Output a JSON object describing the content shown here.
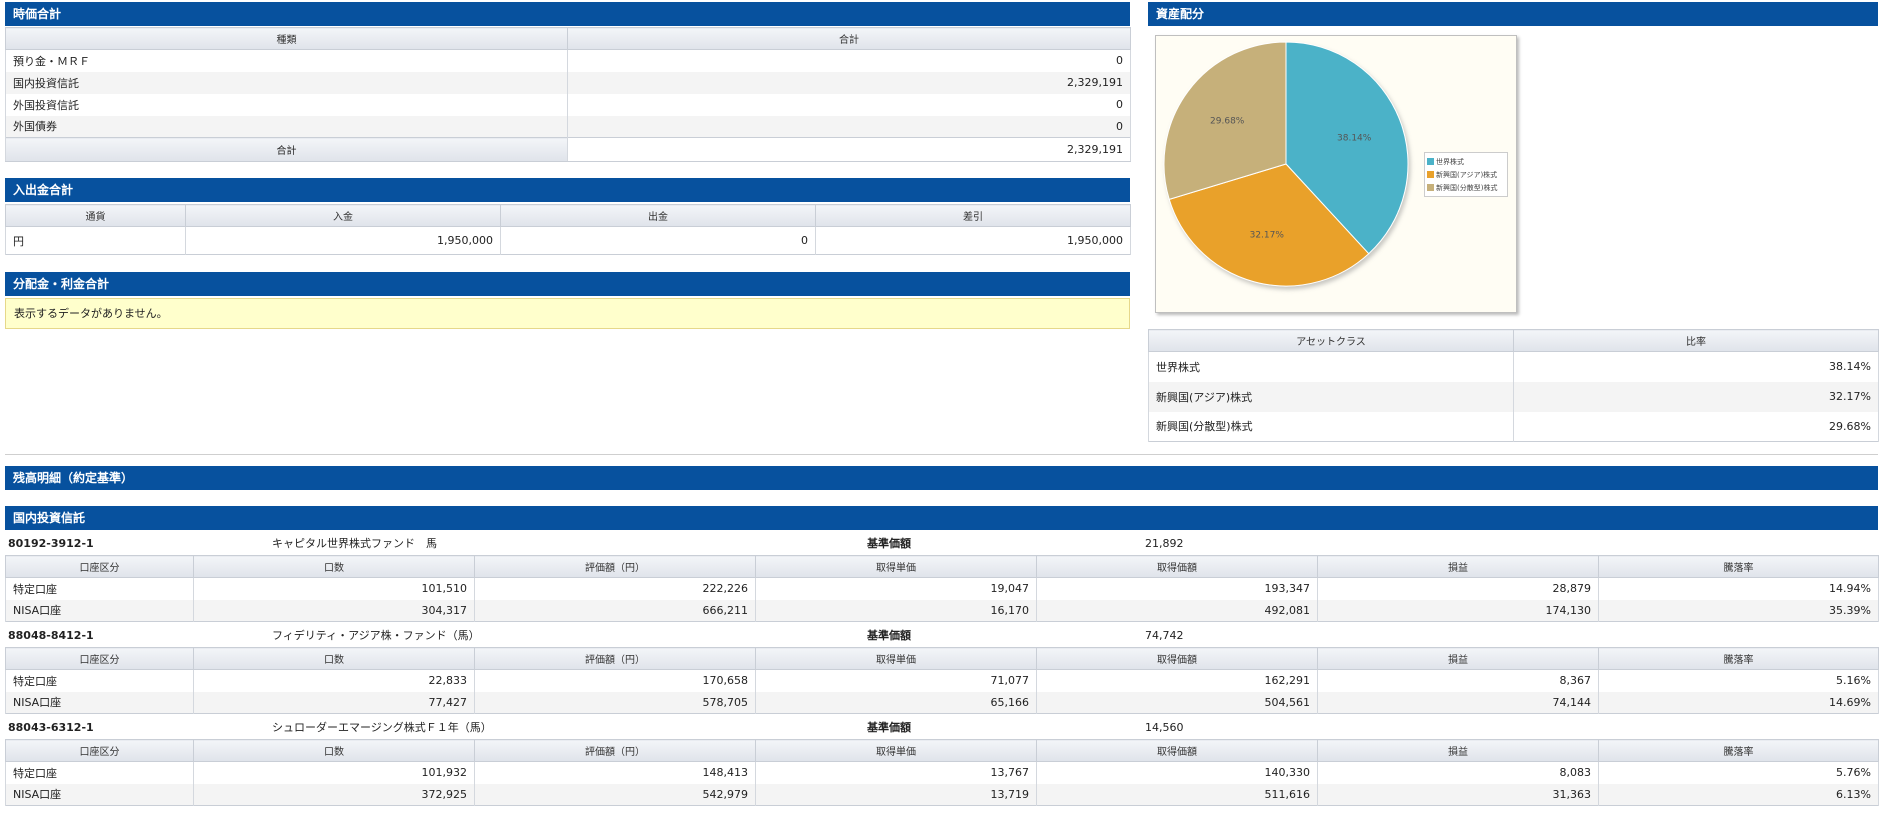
{
  "market_value": {
    "title": "時価合計",
    "headers": [
      "種類",
      "合計"
    ],
    "rows": [
      {
        "type": "預り金・ＭＲＦ",
        "total": "0"
      },
      {
        "type": "国内投資信託",
        "total": "2,329,191"
      },
      {
        "type": "外国投資信託",
        "total": "0"
      },
      {
        "type": "外国債券",
        "total": "0"
      }
    ],
    "total_label": "合計",
    "total_value": "2,329,191"
  },
  "cash_flow": {
    "title": "入出金合計",
    "headers": [
      "通貨",
      "入金",
      "出金",
      "差引"
    ],
    "row": {
      "currency": "円",
      "deposit": "1,950,000",
      "withdrawal": "0",
      "net": "1,950,000"
    }
  },
  "distribution": {
    "title": "分配金・利金合計",
    "message": "表示するデータがありません。"
  },
  "asset_allocation": {
    "title": "資産配分",
    "headers": [
      "アセットクラス",
      "比率"
    ],
    "rows": [
      {
        "cls": "世界株式",
        "ratio": "38.14%"
      },
      {
        "cls": "新興国(アジア)株式",
        "ratio": "32.17%"
      },
      {
        "cls": "新興国(分散型)株式",
        "ratio": "29.68%"
      }
    ]
  },
  "chart_data": {
    "type": "pie",
    "labels": [
      "世界株式",
      "新興国(アジア)株式",
      "新興国(分散型)株式"
    ],
    "values": [
      38.14,
      32.17,
      29.68
    ],
    "value_labels": [
      "38.14%",
      "32.17%",
      "29.68%"
    ],
    "colors": [
      "#4bb2c8",
      "#e9a12b",
      "#c6b07a"
    ],
    "legend_position": "right"
  },
  "balance": {
    "title": "残高明細（約定基準）",
    "subtitle": "国内投資信託",
    "base_price_label": "基準価額",
    "headers": [
      "口座区分",
      "口数",
      "評価額（円）",
      "取得単価",
      "取得価額",
      "損益",
      "騰落率"
    ],
    "funds": [
      {
        "code": "80192-3912-1",
        "name": "キャピタル世界株式ファンド　馬",
        "base_price": "21,892",
        "rows": [
          {
            "account": "特定口座",
            "units": "101,510",
            "value": "222,226",
            "unit_cost": "19,047",
            "cost": "193,347",
            "pl": "28,879",
            "rate": "14.94%"
          },
          {
            "account": "NISA口座",
            "units": "304,317",
            "value": "666,211",
            "unit_cost": "16,170",
            "cost": "492,081",
            "pl": "174,130",
            "rate": "35.39%"
          }
        ]
      },
      {
        "code": "88048-8412-1",
        "name": "フィデリティ・アジア株・ファンド（馬）",
        "base_price": "74,742",
        "rows": [
          {
            "account": "特定口座",
            "units": "22,833",
            "value": "170,658",
            "unit_cost": "71,077",
            "cost": "162,291",
            "pl": "8,367",
            "rate": "5.16%"
          },
          {
            "account": "NISA口座",
            "units": "77,427",
            "value": "578,705",
            "unit_cost": "65,166",
            "cost": "504,561",
            "pl": "74,144",
            "rate": "14.69%"
          }
        ]
      },
      {
        "code": "88043-6312-1",
        "name": "シュローダーエマージング株式Ｆ１年（馬）",
        "base_price": "14,560",
        "rows": [
          {
            "account": "特定口座",
            "units": "101,932",
            "value": "148,413",
            "unit_cost": "13,767",
            "cost": "140,330",
            "pl": "8,083",
            "rate": "5.76%"
          },
          {
            "account": "NISA口座",
            "units": "372,925",
            "value": "542,979",
            "unit_cost": "13,719",
            "cost": "511,616",
            "pl": "31,363",
            "rate": "6.13%"
          }
        ]
      }
    ]
  }
}
